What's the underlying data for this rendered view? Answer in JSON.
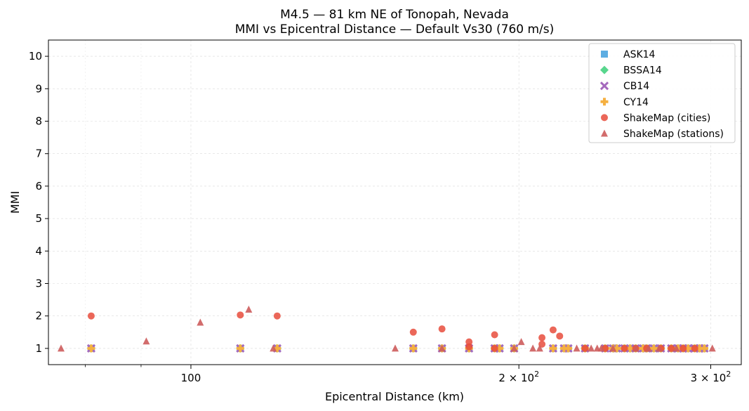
{
  "chart_data": {
    "type": "scatter",
    "title": "M4.5 — 81 km NE of Tonopah, Nevada",
    "subtitle": "MMI vs Epicentral Distance — Default Vs30 (760 m/s)",
    "xlabel": "Epicentral Distance (km)",
    "ylabel": "MMI",
    "xscale": "log",
    "xlim": [
      74,
      320
    ],
    "ylim": [
      0.5,
      10.5
    ],
    "grid": true,
    "legend_position": "top-right",
    "x_ticks": [
      {
        "value": 100,
        "base": "100",
        "exp": ""
      },
      {
        "value": 200,
        "base": "2 × 10",
        "exp": "2"
      },
      {
        "value": 300,
        "base": "3 × 10",
        "exp": "2"
      }
    ],
    "x_minor_ticks": [
      80,
      90
    ],
    "y_ticks": [
      1,
      2,
      3,
      4,
      5,
      6,
      7,
      8,
      9,
      10
    ],
    "series": [
      {
        "name": "ASK14",
        "color": "#5DADE2",
        "marker": "square",
        "x": [
          81,
          111,
          120,
          160,
          170,
          180,
          190,
          192,
          198,
          215,
          220,
          222,
          230,
          240,
          244,
          246,
          250,
          253,
          256,
          260,
          262,
          266,
          270,
          276,
          280,
          283,
          286,
          290,
          293,
          296
        ],
        "y": [
          1,
          1,
          1,
          1,
          1,
          1,
          1,
          1,
          1,
          1,
          1,
          1,
          1,
          1,
          1,
          1,
          1,
          1,
          1,
          1,
          1,
          1,
          1,
          1,
          1,
          1,
          1,
          1,
          1,
          1
        ]
      },
      {
        "name": "BSSA14",
        "color": "#58D68D",
        "marker": "diamond",
        "x": [
          81,
          111,
          120,
          160,
          170,
          180,
          190,
          192,
          198,
          215,
          220,
          222,
          230,
          240,
          244,
          246,
          250,
          253,
          256,
          260,
          262,
          266,
          270,
          276,
          280,
          283,
          286,
          290,
          293,
          296
        ],
        "y": [
          1,
          1,
          1,
          1,
          1,
          1,
          1,
          1,
          1,
          1,
          1,
          1,
          1,
          1,
          1,
          1,
          1,
          1,
          1,
          1,
          1,
          1,
          1,
          1,
          1,
          1,
          1,
          1,
          1,
          1
        ]
      },
      {
        "name": "CB14",
        "color": "#A569BD",
        "marker": "x",
        "x": [
          81,
          111,
          120,
          160,
          170,
          180,
          190,
          192,
          198,
          215,
          220,
          222,
          230,
          240,
          244,
          246,
          250,
          253,
          256,
          260,
          262,
          266,
          270,
          276,
          280,
          283,
          286,
          290,
          293,
          296
        ],
        "y": [
          1,
          1,
          1,
          1,
          1,
          1,
          1,
          1,
          1,
          1,
          1,
          1,
          1,
          1,
          1,
          1,
          1,
          1,
          1,
          1,
          1,
          1,
          1,
          1,
          1,
          1,
          1,
          1,
          1,
          1
        ]
      },
      {
        "name": "CY14",
        "color": "#F5B041",
        "marker": "plus",
        "x": [
          81,
          111,
          120,
          160,
          170,
          180,
          190,
          192,
          198,
          215,
          220,
          222,
          230,
          240,
          244,
          246,
          250,
          253,
          256,
          260,
          262,
          266,
          270,
          276,
          280,
          283,
          286,
          290,
          293,
          296
        ],
        "y": [
          1,
          1,
          1,
          1,
          1,
          1,
          1,
          1,
          1,
          1,
          1,
          1,
          1,
          1,
          1,
          1,
          1,
          1,
          1,
          1,
          1,
          1,
          1,
          1,
          1,
          1,
          1,
          1,
          1,
          1
        ]
      },
      {
        "name": "ShakeMap (cities)",
        "color": "#E74C3C",
        "marker": "circle",
        "x": [
          81,
          111,
          120,
          160,
          170,
          180,
          180,
          190,
          190,
          210,
          210,
          215,
          218,
          230,
          240,
          250,
          256,
          262,
          270,
          276,
          283,
          290
        ],
        "y": [
          2.0,
          2.03,
          2.0,
          1.5,
          1.6,
          1.2,
          1.05,
          1.42,
          1.0,
          1.33,
          1.13,
          1.57,
          1.38,
          1.0,
          1.0,
          1.0,
          1.0,
          1.0,
          1.0,
          1.0,
          1.0,
          1.0
        ]
      },
      {
        "name": "ShakeMap (stations)",
        "color": "#CD5C5C",
        "marker": "triangle",
        "x": [
          76,
          91,
          102,
          113,
          119,
          154,
          170,
          198,
          201,
          206,
          209,
          226,
          233,
          236,
          238,
          244,
          256,
          263,
          269,
          279,
          301
        ],
        "y": [
          1.0,
          1.22,
          1.8,
          2.2,
          1.0,
          1.0,
          1.0,
          1.0,
          1.2,
          1.0,
          1.0,
          1.0,
          1.0,
          1.0,
          1.0,
          1.0,
          1.0,
          1.0,
          1.0,
          1.0,
          1.0
        ]
      }
    ]
  }
}
